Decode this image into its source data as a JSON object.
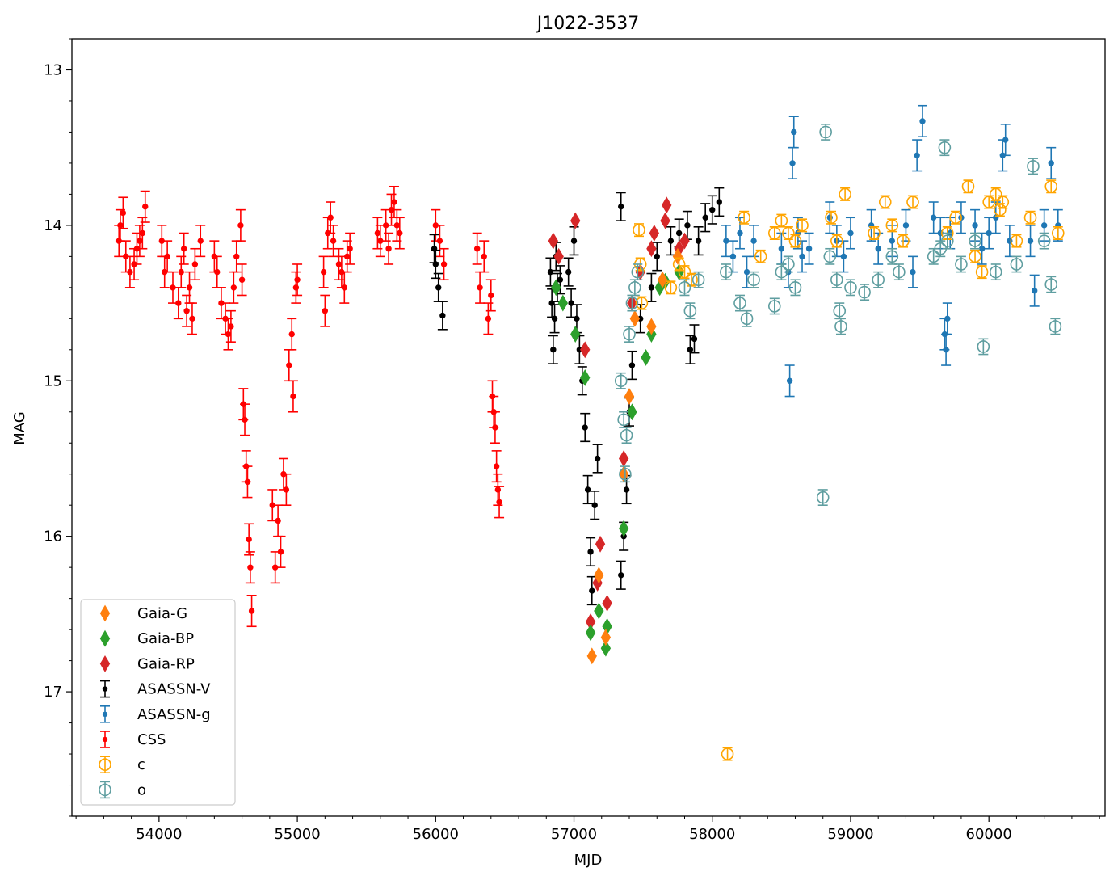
{
  "chart_data": {
    "type": "scatter",
    "title": "J1022-3537",
    "xlabel": "MJD",
    "ylabel": "MAG",
    "xlim": [
      53370,
      60840
    ],
    "ylim": [
      17.8,
      12.8
    ],
    "y_inverted": true,
    "xticks": [
      54000,
      55000,
      56000,
      57000,
      58000,
      59000,
      60000
    ],
    "xtick_labels": [
      "54000",
      "55000",
      "56000",
      "57000",
      "58000",
      "59000",
      "60000"
    ],
    "yticks": [
      13,
      14,
      15,
      16,
      17
    ],
    "ytick_labels": [
      "13",
      "14",
      "15",
      "16",
      "17"
    ],
    "grid": false,
    "legend_position": "lower-left",
    "series": [
      {
        "name": "Gaia-G",
        "marker": "diamond",
        "color": "#ff7f0e",
        "errorbars": false,
        "points": [
          [
            57130,
            16.77
          ],
          [
            57180,
            16.25
          ],
          [
            57230,
            16.65
          ],
          [
            57360,
            15.6
          ],
          [
            57400,
            15.1
          ],
          [
            57440,
            14.6
          ],
          [
            57560,
            14.65
          ],
          [
            57640,
            14.35
          ],
          [
            57750,
            14.2
          ]
        ]
      },
      {
        "name": "Gaia-BP",
        "marker": "diamond",
        "color": "#2ca02c",
        "errorbars": false,
        "points": [
          [
            56870,
            14.4
          ],
          [
            56920,
            14.5
          ],
          [
            57010,
            14.7
          ],
          [
            57080,
            14.98
          ],
          [
            57120,
            16.62
          ],
          [
            57180,
            16.48
          ],
          [
            57230,
            16.72
          ],
          [
            57240,
            16.58
          ],
          [
            57360,
            15.95
          ],
          [
            57420,
            15.2
          ],
          [
            57520,
            14.85
          ],
          [
            57560,
            14.7
          ],
          [
            57620,
            14.4
          ],
          [
            57660,
            14.36
          ],
          [
            57760,
            14.3
          ]
        ]
      },
      {
        "name": "Gaia-RP",
        "marker": "diamond",
        "color": "#d62728",
        "errorbars": false,
        "points": [
          [
            56850,
            14.1
          ],
          [
            56890,
            14.2
          ],
          [
            57010,
            13.97
          ],
          [
            57080,
            14.8
          ],
          [
            57120,
            16.55
          ],
          [
            57170,
            16.3
          ],
          [
            57190,
            16.05
          ],
          [
            57240,
            16.43
          ],
          [
            57360,
            15.5
          ],
          [
            57420,
            14.5
          ],
          [
            57480,
            14.3
          ],
          [
            57560,
            14.15
          ],
          [
            57580,
            14.05
          ],
          [
            57660,
            13.97
          ],
          [
            57670,
            13.87
          ],
          [
            57760,
            14.15
          ],
          [
            57800,
            14.1
          ]
        ]
      },
      {
        "name": "ASASSN-V",
        "marker": "dot",
        "color": "#000000",
        "errorbars": true,
        "err": 0.09,
        "points": [
          [
            55990,
            14.15
          ],
          [
            56000,
            14.25
          ],
          [
            56020,
            14.4
          ],
          [
            56050,
            14.58
          ],
          [
            56830,
            14.3
          ],
          [
            56840,
            14.5
          ],
          [
            56850,
            14.8
          ],
          [
            56860,
            14.6
          ],
          [
            56870,
            14.2
          ],
          [
            56880,
            14.4
          ],
          [
            56900,
            14.35
          ],
          [
            56960,
            14.3
          ],
          [
            56980,
            14.5
          ],
          [
            57000,
            14.1
          ],
          [
            57020,
            14.6
          ],
          [
            57040,
            14.8
          ],
          [
            57060,
            15.0
          ],
          [
            57080,
            15.3
          ],
          [
            57100,
            15.7
          ],
          [
            57120,
            16.1
          ],
          [
            57130,
            16.35
          ],
          [
            57150,
            15.8
          ],
          [
            57170,
            15.5
          ],
          [
            57340,
            16.25
          ],
          [
            57360,
            16.0
          ],
          [
            57380,
            15.7
          ],
          [
            57340,
            13.88
          ],
          [
            57400,
            15.2
          ],
          [
            57420,
            14.9
          ],
          [
            57480,
            14.6
          ],
          [
            57560,
            14.4
          ],
          [
            57600,
            14.2
          ],
          [
            57700,
            14.1
          ],
          [
            57760,
            14.05
          ],
          [
            57820,
            14.0
          ],
          [
            57840,
            14.8
          ],
          [
            57870,
            14.73
          ],
          [
            57900,
            14.1
          ],
          [
            57950,
            13.95
          ],
          [
            58000,
            13.9
          ],
          [
            58050,
            13.85
          ]
        ]
      },
      {
        "name": "ASASSN-g",
        "marker": "dot",
        "color": "#1f77b4",
        "errorbars": true,
        "err": 0.1,
        "points": [
          [
            58100,
            14.1
          ],
          [
            58150,
            14.2
          ],
          [
            58200,
            14.05
          ],
          [
            58250,
            14.3
          ],
          [
            58300,
            14.1
          ],
          [
            58500,
            14.15
          ],
          [
            58550,
            14.3
          ],
          [
            58560,
            15.0
          ],
          [
            58580,
            13.6
          ],
          [
            58590,
            13.4
          ],
          [
            58620,
            14.05
          ],
          [
            58650,
            14.2
          ],
          [
            58700,
            14.15
          ],
          [
            58850,
            13.95
          ],
          [
            58900,
            14.1
          ],
          [
            58950,
            14.2
          ],
          [
            59000,
            14.05
          ],
          [
            59150,
            14.0
          ],
          [
            59200,
            14.15
          ],
          [
            59300,
            14.1
          ],
          [
            59400,
            14.0
          ],
          [
            59450,
            14.3
          ],
          [
            59480,
            13.55
          ],
          [
            59520,
            13.33
          ],
          [
            59600,
            13.95
          ],
          [
            59650,
            14.05
          ],
          [
            59680,
            14.7
          ],
          [
            59690,
            14.8
          ],
          [
            59700,
            14.6
          ],
          [
            59720,
            14.05
          ],
          [
            59800,
            13.95
          ],
          [
            59900,
            14.0
          ],
          [
            59950,
            14.15
          ],
          [
            60000,
            14.05
          ],
          [
            60050,
            13.95
          ],
          [
            60100,
            13.55
          ],
          [
            60120,
            13.45
          ],
          [
            60150,
            14.1
          ],
          [
            60300,
            14.1
          ],
          [
            60330,
            14.42
          ],
          [
            60400,
            14.0
          ],
          [
            60450,
            13.6
          ],
          [
            60500,
            14.0
          ]
        ]
      },
      {
        "name": "CSS",
        "marker": "dot",
        "color": "#ff0000",
        "errorbars": true,
        "err": 0.1,
        "points": [
          [
            53710,
            14.1
          ],
          [
            53720,
            14.0
          ],
          [
            53740,
            13.92
          ],
          [
            53760,
            14.2
          ],
          [
            53790,
            14.3
          ],
          [
            53820,
            14.25
          ],
          [
            53840,
            14.15
          ],
          [
            53860,
            14.1
          ],
          [
            53880,
            14.05
          ],
          [
            53900,
            13.88
          ],
          [
            54020,
            14.1
          ],
          [
            54040,
            14.3
          ],
          [
            54060,
            14.2
          ],
          [
            54100,
            14.4
          ],
          [
            54140,
            14.5
          ],
          [
            54160,
            14.3
          ],
          [
            54180,
            14.15
          ],
          [
            54200,
            14.55
          ],
          [
            54220,
            14.4
          ],
          [
            54240,
            14.6
          ],
          [
            54260,
            14.25
          ],
          [
            54300,
            14.1
          ],
          [
            54400,
            14.2
          ],
          [
            54420,
            14.3
          ],
          [
            54450,
            14.5
          ],
          [
            54480,
            14.6
          ],
          [
            54500,
            14.7
          ],
          [
            54520,
            14.65
          ],
          [
            54540,
            14.4
          ],
          [
            54560,
            14.2
          ],
          [
            54590,
            14.0
          ],
          [
            54600,
            14.35
          ],
          [
            54610,
            15.15
          ],
          [
            54620,
            15.25
          ],
          [
            54630,
            15.55
          ],
          [
            54640,
            15.65
          ],
          [
            54650,
            16.02
          ],
          [
            54660,
            16.2
          ],
          [
            54670,
            16.48
          ],
          [
            54820,
            15.8
          ],
          [
            54840,
            16.2
          ],
          [
            54860,
            15.9
          ],
          [
            54880,
            16.1
          ],
          [
            54900,
            15.6
          ],
          [
            54920,
            15.7
          ],
          [
            54940,
            14.9
          ],
          [
            54960,
            14.7
          ],
          [
            54970,
            15.1
          ],
          [
            54990,
            14.4
          ],
          [
            55000,
            14.35
          ],
          [
            55190,
            14.3
          ],
          [
            55200,
            14.55
          ],
          [
            55220,
            14.05
          ],
          [
            55240,
            13.95
          ],
          [
            55260,
            14.1
          ],
          [
            55300,
            14.25
          ],
          [
            55320,
            14.3
          ],
          [
            55340,
            14.4
          ],
          [
            55360,
            14.2
          ],
          [
            55380,
            14.15
          ],
          [
            55580,
            14.05
          ],
          [
            55600,
            14.1
          ],
          [
            55640,
            14.0
          ],
          [
            55660,
            14.15
          ],
          [
            55680,
            13.9
          ],
          [
            55700,
            13.85
          ],
          [
            55720,
            14.0
          ],
          [
            55740,
            14.05
          ],
          [
            56000,
            14.0
          ],
          [
            56030,
            14.1
          ],
          [
            56060,
            14.25
          ],
          [
            56300,
            14.15
          ],
          [
            56320,
            14.4
          ],
          [
            56350,
            14.2
          ],
          [
            56380,
            14.6
          ],
          [
            56400,
            14.45
          ],
          [
            56410,
            15.1
          ],
          [
            56420,
            15.2
          ],
          [
            56430,
            15.3
          ],
          [
            56440,
            15.55
          ],
          [
            56450,
            15.7
          ],
          [
            56460,
            15.78
          ]
        ]
      },
      {
        "name": "c",
        "marker": "open-circle",
        "color": "#ffa500",
        "errorbars": true,
        "err": 0.04,
        "points": [
          [
            57470,
            14.03
          ],
          [
            57480,
            14.25
          ],
          [
            57490,
            14.5
          ],
          [
            57700,
            14.4
          ],
          [
            57760,
            14.25
          ],
          [
            57800,
            14.3
          ],
          [
            57850,
            14.35
          ],
          [
            58110,
            17.4
          ],
          [
            58230,
            13.95
          ],
          [
            58350,
            14.2
          ],
          [
            58450,
            14.05
          ],
          [
            58500,
            13.97
          ],
          [
            58550,
            14.05
          ],
          [
            58600,
            14.1
          ],
          [
            58650,
            14.0
          ],
          [
            58860,
            13.95
          ],
          [
            58900,
            14.1
          ],
          [
            58960,
            13.8
          ],
          [
            59170,
            14.05
          ],
          [
            59250,
            13.85
          ],
          [
            59300,
            14.0
          ],
          [
            59380,
            14.1
          ],
          [
            59450,
            13.85
          ],
          [
            59700,
            14.05
          ],
          [
            59760,
            13.95
          ],
          [
            59850,
            13.75
          ],
          [
            59900,
            14.2
          ],
          [
            59950,
            14.3
          ],
          [
            60000,
            13.85
          ],
          [
            60050,
            13.8
          ],
          [
            60080,
            13.9
          ],
          [
            60100,
            13.85
          ],
          [
            60200,
            14.1
          ],
          [
            60300,
            13.95
          ],
          [
            60450,
            13.75
          ],
          [
            60500,
            14.05
          ]
        ]
      },
      {
        "name": "o",
        "marker": "open-circle",
        "color": "#5f9ea0",
        "errorbars": true,
        "err": 0.05,
        "points": [
          [
            57340,
            15.0
          ],
          [
            57360,
            15.25
          ],
          [
            57370,
            15.6
          ],
          [
            57380,
            15.35
          ],
          [
            57400,
            14.7
          ],
          [
            57420,
            14.5
          ],
          [
            57440,
            14.4
          ],
          [
            57460,
            14.3
          ],
          [
            57800,
            14.4
          ],
          [
            57840,
            14.55
          ],
          [
            57900,
            14.35
          ],
          [
            58100,
            14.3
          ],
          [
            58200,
            14.5
          ],
          [
            58250,
            14.6
          ],
          [
            58300,
            14.35
          ],
          [
            58450,
            14.52
          ],
          [
            58500,
            14.3
          ],
          [
            58550,
            14.25
          ],
          [
            58600,
            14.4
          ],
          [
            58800,
            15.75
          ],
          [
            58820,
            13.4
          ],
          [
            58850,
            14.2
          ],
          [
            58900,
            14.35
          ],
          [
            58920,
            14.55
          ],
          [
            58930,
            14.65
          ],
          [
            59000,
            14.4
          ],
          [
            59100,
            14.43
          ],
          [
            59200,
            14.35
          ],
          [
            59300,
            14.2
          ],
          [
            59350,
            14.3
          ],
          [
            59600,
            14.2
          ],
          [
            59650,
            14.15
          ],
          [
            59680,
            13.5
          ],
          [
            59700,
            14.1
          ],
          [
            59800,
            14.25
          ],
          [
            59900,
            14.1
          ],
          [
            59960,
            14.78
          ],
          [
            60050,
            14.3
          ],
          [
            60200,
            14.25
          ],
          [
            60320,
            13.62
          ],
          [
            60400,
            14.1
          ],
          [
            60450,
            14.38
          ],
          [
            60480,
            14.65
          ]
        ]
      }
    ]
  }
}
